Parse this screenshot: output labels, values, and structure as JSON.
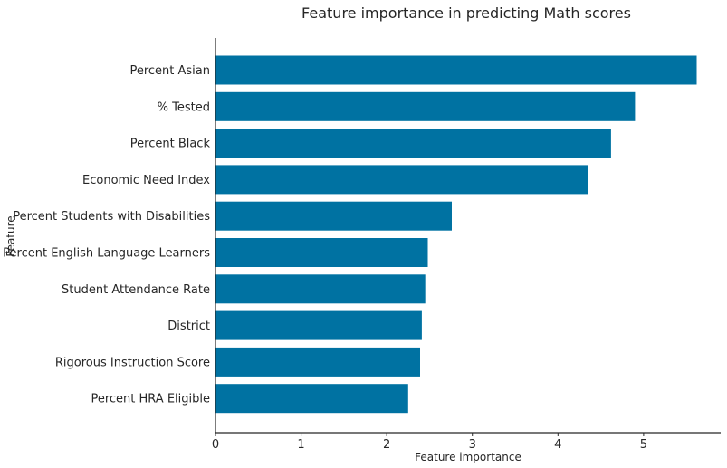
{
  "chart_data": {
    "type": "bar",
    "orientation": "horizontal",
    "title": "Feature importance in predicting Math scores",
    "xlabel": "Feature importance",
    "ylabel": "Feature",
    "xlim": [
      0,
      5.9
    ],
    "xticks": [
      0,
      1,
      2,
      3,
      4,
      5
    ],
    "grid": false,
    "bar_color": "#0072a2",
    "categories": [
      "Percent Asian",
      "% Tested",
      "Percent Black",
      "Economic Need Index",
      "Percent Students with Disabilities",
      "Percent English Language Learners",
      "Student Attendance Rate",
      "District",
      "Rigorous Instruction Score",
      "Percent HRA Eligible"
    ],
    "values": [
      5.62,
      4.9,
      4.62,
      4.35,
      2.76,
      2.48,
      2.45,
      2.41,
      2.39,
      2.25
    ]
  }
}
